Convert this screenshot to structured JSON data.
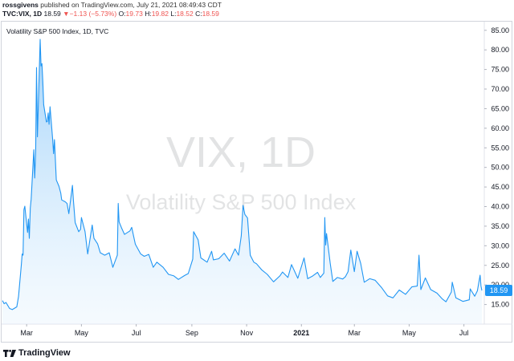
{
  "header": {
    "user": "rossgivens",
    "published_text": "published on TradingView.com, July 21, 2021 08:49:43 CDT",
    "symbol": "TVC:VIX, 1D",
    "last": "18.59",
    "change_arrow": "▼",
    "change": "−1.13 (−5.73%)",
    "o_label": "O:",
    "o_value": "19.73",
    "h_label": "H:",
    "h_value": "19.82",
    "l_label": "L:",
    "l_value": "18.52",
    "c_label": "C:",
    "c_value": "18.59"
  },
  "legend": "Volatility S&P 500 Index, 1D, TVC",
  "watermark": {
    "symbol": "VIX, 1D",
    "name": "Volatility S&P 500 Index"
  },
  "price_label": "18.59",
  "footer": {
    "brand": "TradingView"
  },
  "colors": {
    "line": "#2196f3",
    "fill_top": "#90caf9",
    "fill_bottom": "#e3f2fd",
    "price_tag": "#2196f3",
    "down": "#ef5350"
  },
  "chart_data": {
    "type": "area",
    "x_start": "2020-02-03",
    "x_end": "2021-07-21",
    "x_ticks": [
      {
        "label": "Mar",
        "date": "2020-03-01"
      },
      {
        "label": "May",
        "date": "2020-05-01"
      },
      {
        "label": "Jul",
        "date": "2020-07-01"
      },
      {
        "label": "Sep",
        "date": "2020-09-01"
      },
      {
        "label": "Nov",
        "date": "2020-11-01"
      },
      {
        "label": "2021",
        "date": "2021-01-01",
        "bold": true
      },
      {
        "label": "Mar",
        "date": "2021-03-01"
      },
      {
        "label": "May",
        "date": "2021-05-01"
      },
      {
        "label": "Jul",
        "date": "2021-07-01"
      }
    ],
    "y_ticks": [
      "15.00",
      "20.00",
      "25.00",
      "30.00",
      "35.00",
      "40.00",
      "45.00",
      "50.00",
      "55.00",
      "60.00",
      "65.00",
      "70.00",
      "75.00",
      "80.00",
      "85.00"
    ],
    "ylim": [
      10,
      87
    ],
    "series": [
      {
        "points": [
          [
            "2020-02-03",
            16.0
          ],
          [
            "2020-02-05",
            15.2
          ],
          [
            "2020-02-07",
            15.5
          ],
          [
            "2020-02-11",
            14.0
          ],
          [
            "2020-02-14",
            13.7
          ],
          [
            "2020-02-19",
            14.4
          ],
          [
            "2020-02-21",
            17.1
          ],
          [
            "2020-02-24",
            25.0
          ],
          [
            "2020-02-25",
            27.9
          ],
          [
            "2020-02-26",
            27.6
          ],
          [
            "2020-02-27",
            39.2
          ],
          [
            "2020-02-28",
            40.1
          ],
          [
            "2020-03-02",
            33.4
          ],
          [
            "2020-03-03",
            36.8
          ],
          [
            "2020-03-04",
            31.9
          ],
          [
            "2020-03-05",
            39.6
          ],
          [
            "2020-03-06",
            41.9
          ],
          [
            "2020-03-09",
            54.5
          ],
          [
            "2020-03-10",
            47.3
          ],
          [
            "2020-03-11",
            53.9
          ],
          [
            "2020-03-12",
            75.5
          ],
          [
            "2020-03-13",
            57.8
          ],
          [
            "2020-03-16",
            82.7
          ],
          [
            "2020-03-17",
            75.9
          ],
          [
            "2020-03-18",
            76.5
          ],
          [
            "2020-03-19",
            72.0
          ],
          [
            "2020-03-20",
            66.0
          ],
          [
            "2020-03-23",
            61.6
          ],
          [
            "2020-03-24",
            61.7
          ],
          [
            "2020-03-25",
            63.9
          ],
          [
            "2020-03-26",
            61.0
          ],
          [
            "2020-03-27",
            65.5
          ],
          [
            "2020-03-30",
            57.1
          ],
          [
            "2020-03-31",
            53.5
          ],
          [
            "2020-04-01",
            57.1
          ],
          [
            "2020-04-03",
            46.8
          ],
          [
            "2020-04-06",
            45.2
          ],
          [
            "2020-04-08",
            43.4
          ],
          [
            "2020-04-09",
            41.7
          ],
          [
            "2020-04-13",
            41.2
          ],
          [
            "2020-04-15",
            40.8
          ],
          [
            "2020-04-17",
            38.2
          ],
          [
            "2020-04-21",
            45.4
          ],
          [
            "2020-04-22",
            41.9
          ],
          [
            "2020-04-24",
            35.9
          ],
          [
            "2020-04-28",
            33.6
          ],
          [
            "2020-04-30",
            34.2
          ],
          [
            "2020-05-01",
            37.2
          ],
          [
            "2020-05-05",
            33.6
          ],
          [
            "2020-05-08",
            27.9
          ],
          [
            "2020-05-13",
            35.3
          ],
          [
            "2020-05-15",
            31.9
          ],
          [
            "2020-05-19",
            30.5
          ],
          [
            "2020-05-22",
            28.2
          ],
          [
            "2020-05-27",
            27.6
          ],
          [
            "2020-06-01",
            28.2
          ],
          [
            "2020-06-05",
            24.5
          ],
          [
            "2020-06-10",
            27.6
          ],
          [
            "2020-06-11",
            40.8
          ],
          [
            "2020-06-12",
            36.1
          ],
          [
            "2020-06-15",
            34.4
          ],
          [
            "2020-06-18",
            32.9
          ],
          [
            "2020-06-24",
            33.8
          ],
          [
            "2020-06-26",
            34.7
          ],
          [
            "2020-06-30",
            30.4
          ],
          [
            "2020-07-06",
            27.9
          ],
          [
            "2020-07-10",
            27.3
          ],
          [
            "2020-07-15",
            27.8
          ],
          [
            "2020-07-20",
            24.5
          ],
          [
            "2020-07-24",
            25.8
          ],
          [
            "2020-07-31",
            24.5
          ],
          [
            "2020-08-06",
            22.7
          ],
          [
            "2020-08-12",
            22.3
          ],
          [
            "2020-08-17",
            21.4
          ],
          [
            "2020-08-24",
            22.4
          ],
          [
            "2020-08-28",
            22.9
          ],
          [
            "2020-09-02",
            26.6
          ],
          [
            "2020-09-03",
            33.6
          ],
          [
            "2020-09-08",
            31.5
          ],
          [
            "2020-09-11",
            26.9
          ],
          [
            "2020-09-18",
            25.8
          ],
          [
            "2020-09-23",
            28.6
          ],
          [
            "2020-09-25",
            26.4
          ],
          [
            "2020-10-01",
            26.7
          ],
          [
            "2020-10-07",
            28.1
          ],
          [
            "2020-10-13",
            26.1
          ],
          [
            "2020-10-19",
            29.2
          ],
          [
            "2020-10-23",
            27.6
          ],
          [
            "2020-10-26",
            32.5
          ],
          [
            "2020-10-28",
            40.3
          ],
          [
            "2020-10-30",
            38.0
          ],
          [
            "2020-11-02",
            37.1
          ],
          [
            "2020-11-05",
            27.6
          ],
          [
            "2020-11-09",
            25.8
          ],
          [
            "2020-11-12",
            25.4
          ],
          [
            "2020-11-18",
            23.8
          ],
          [
            "2020-11-24",
            22.7
          ],
          [
            "2020-12-01",
            20.8
          ],
          [
            "2020-12-08",
            22.3
          ],
          [
            "2020-12-11",
            23.3
          ],
          [
            "2020-12-17",
            21.9
          ],
          [
            "2020-12-21",
            25.2
          ],
          [
            "2020-12-28",
            21.7
          ],
          [
            "2021-01-04",
            26.9
          ],
          [
            "2021-01-08",
            21.6
          ],
          [
            "2021-01-13",
            22.2
          ],
          [
            "2021-01-19",
            23.2
          ],
          [
            "2021-01-22",
            21.9
          ],
          [
            "2021-01-26",
            23.0
          ],
          [
            "2021-01-27",
            37.2
          ],
          [
            "2021-01-28",
            30.2
          ],
          [
            "2021-01-29",
            33.1
          ],
          [
            "2021-02-02",
            25.6
          ],
          [
            "2021-02-05",
            20.9
          ],
          [
            "2021-02-10",
            21.9
          ],
          [
            "2021-02-16",
            21.5
          ],
          [
            "2021-02-19",
            22.1
          ],
          [
            "2021-02-22",
            23.4
          ],
          [
            "2021-02-25",
            28.9
          ],
          [
            "2021-03-01",
            23.4
          ],
          [
            "2021-03-04",
            28.6
          ],
          [
            "2021-03-08",
            25.5
          ],
          [
            "2021-03-12",
            20.7
          ],
          [
            "2021-03-18",
            21.6
          ],
          [
            "2021-03-24",
            21.2
          ],
          [
            "2021-03-31",
            19.4
          ],
          [
            "2021-04-07",
            17.2
          ],
          [
            "2021-04-13",
            16.7
          ],
          [
            "2021-04-20",
            18.7
          ],
          [
            "2021-04-27",
            17.6
          ],
          [
            "2021-05-04",
            19.5
          ],
          [
            "2021-05-10",
            19.7
          ],
          [
            "2021-05-12",
            27.6
          ],
          [
            "2021-05-14",
            18.8
          ],
          [
            "2021-05-19",
            21.8
          ],
          [
            "2021-05-25",
            18.8
          ],
          [
            "2021-06-01",
            17.9
          ],
          [
            "2021-06-07",
            16.4
          ],
          [
            "2021-06-11",
            15.7
          ],
          [
            "2021-06-17",
            18.2
          ],
          [
            "2021-06-18",
            20.7
          ],
          [
            "2021-06-22",
            16.7
          ],
          [
            "2021-06-30",
            15.8
          ],
          [
            "2021-07-07",
            16.2
          ],
          [
            "2021-07-08",
            19.0
          ],
          [
            "2021-07-13",
            17.1
          ],
          [
            "2021-07-16",
            18.5
          ],
          [
            "2021-07-19",
            22.5
          ],
          [
            "2021-07-20",
            19.7
          ],
          [
            "2021-07-21",
            18.59
          ]
        ]
      }
    ]
  }
}
